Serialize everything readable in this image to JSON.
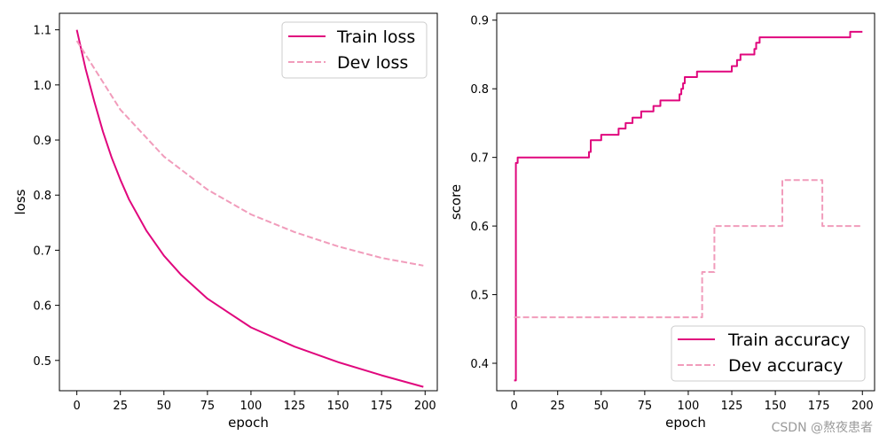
{
  "colors": {
    "train": "#e0077d",
    "dev": "#f19cbb"
  },
  "watermark": "CSDN @熬夜患者",
  "chart_data": [
    {
      "type": "line",
      "xlabel": "epoch",
      "ylabel": "loss",
      "xlim": [
        -10,
        207
      ],
      "ylim": [
        0.445,
        1.13
      ],
      "xticks": [
        0,
        25,
        50,
        75,
        100,
        125,
        150,
        175,
        200
      ],
      "yticks": [
        0.5,
        0.6,
        0.7,
        0.8,
        0.9,
        1.0,
        1.1
      ],
      "legend_position": "top-right",
      "series": [
        {
          "name": "Train loss",
          "style": "solid",
          "x": [
            0,
            5,
            10,
            15,
            20,
            25,
            30,
            40,
            50,
            60,
            75,
            100,
            125,
            150,
            175,
            199
          ],
          "y": [
            1.1,
            1.03,
            0.97,
            0.915,
            0.868,
            0.828,
            0.792,
            0.735,
            0.69,
            0.655,
            0.612,
            0.56,
            0.525,
            0.497,
            0.473,
            0.452
          ]
        },
        {
          "name": "Dev loss",
          "style": "dashed",
          "x": [
            0,
            10,
            25,
            50,
            75,
            100,
            125,
            150,
            175,
            199
          ],
          "y": [
            1.08,
            1.03,
            0.955,
            0.87,
            0.81,
            0.765,
            0.733,
            0.707,
            0.686,
            0.672
          ]
        }
      ]
    },
    {
      "type": "line",
      "xlabel": "epoch",
      "ylabel": "score",
      "xlim": [
        -10,
        207
      ],
      "ylim": [
        0.36,
        0.91
      ],
      "xticks": [
        0,
        25,
        50,
        75,
        100,
        125,
        150,
        175,
        200
      ],
      "yticks": [
        0.4,
        0.5,
        0.6,
        0.7,
        0.8,
        0.9
      ],
      "legend_position": "lower-right",
      "series": [
        {
          "name": "Train accuracy",
          "style": "solid",
          "step": true,
          "x": [
            0,
            1,
            2,
            43,
            44,
            46,
            50,
            56,
            60,
            64,
            68,
            73,
            80,
            84,
            95,
            96,
            97,
            98,
            100,
            105,
            125,
            128,
            130,
            138,
            139,
            141,
            193,
            200
          ],
          "y": [
            0.375,
            0.692,
            0.7,
            0.708,
            0.725,
            0.725,
            0.733,
            0.733,
            0.742,
            0.75,
            0.758,
            0.767,
            0.775,
            0.783,
            0.792,
            0.8,
            0.808,
            0.817,
            0.817,
            0.825,
            0.833,
            0.842,
            0.85,
            0.858,
            0.867,
            0.875,
            0.883,
            0.883
          ]
        },
        {
          "name": "Dev accuracy",
          "style": "dashed",
          "step": true,
          "x": [
            0,
            108,
            115,
            154,
            177,
            200
          ],
          "y": [
            0.467,
            0.533,
            0.6,
            0.667,
            0.6,
            0.6
          ]
        }
      ]
    }
  ]
}
